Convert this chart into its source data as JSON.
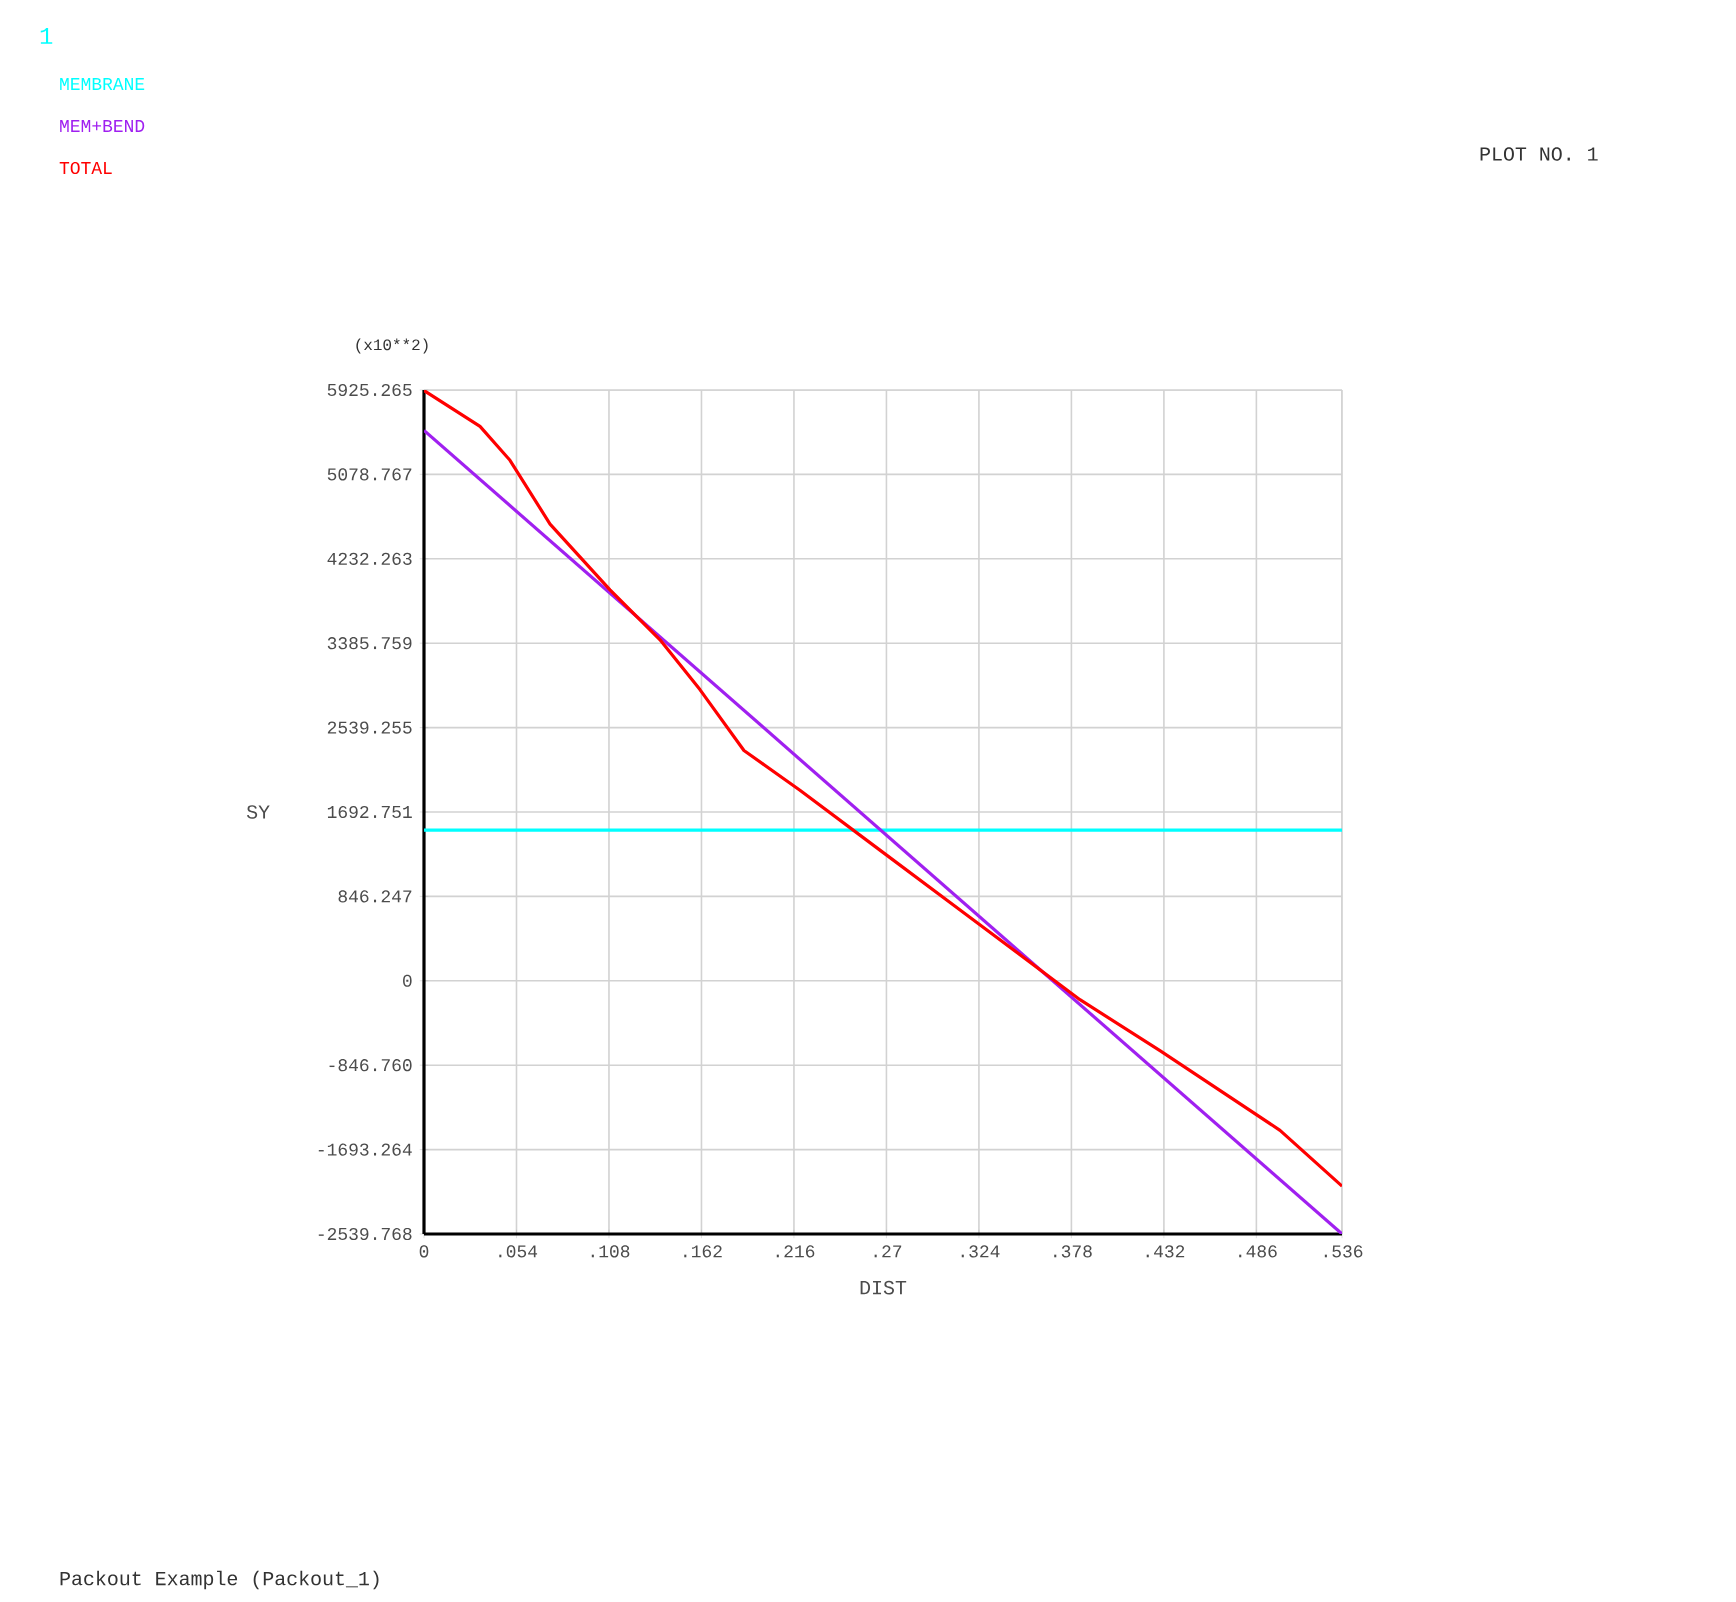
{
  "chart_data": {
    "type": "line",
    "xlabel": "DIST",
    "ylabel": "SY",
    "annotations": [
      "1",
      "PLOT NO.   1",
      "(x10**2)",
      "Packout Example (Packout_1)"
    ],
    "xlim": [
      0,
      0.536
    ],
    "xticks": [
      0,
      {
        "value": 0.054,
        "label": ".054"
      },
      {
        "value": 0.108,
        "label": ".108"
      },
      {
        "value": 0.162,
        "label": ".162"
      },
      {
        "value": 0.216,
        "label": ".216"
      },
      {
        "value": 0.27,
        "label": ".27"
      },
      {
        "value": 0.324,
        "label": ".324"
      },
      {
        "value": 0.378,
        "label": ".378"
      },
      {
        "value": 0.432,
        "label": ".432"
      },
      {
        "value": 0.486,
        "label": ".486"
      },
      {
        "value": 0.536,
        "label": ".536"
      }
    ],
    "ylim": [
      -2539.768,
      5925.265
    ],
    "yticks": [
      -2539.768,
      -1693.264,
      {
        "value": -846.76,
        "label": "-846.760"
      },
      0,
      846.247,
      1692.751,
      2539.255,
      3385.759,
      4232.263,
      5078.767,
      5925.265
    ],
    "grid": true,
    "legend": "top left",
    "series": [
      {
        "name": "MEMBRANE",
        "color": "#00ffff",
        "x": [
          0,
          0.536
        ],
        "values": [
          1510,
          1510
        ]
      },
      {
        "name": "MEM+BEND",
        "color": "#a020f0",
        "x": [
          0,
          0.536
        ],
        "values": [
          5520,
          -2539
        ]
      },
      {
        "name": "TOTAL",
        "color": "#ff0000",
        "x": [
          0,
          0.0327,
          0.0502,
          0.0736,
          0.1086,
          0.1378,
          0.1611,
          0.1868,
          0.2195,
          0.2662,
          0.313,
          0.383,
          0.4297,
          0.4998,
          0.536
        ],
        "values": [
          5920,
          5560,
          5220,
          4580,
          3920,
          3420,
          2920,
          2310,
          1910,
          1310,
          710,
          -190,
          -700,
          -1500,
          -2060
        ]
      }
    ]
  }
}
